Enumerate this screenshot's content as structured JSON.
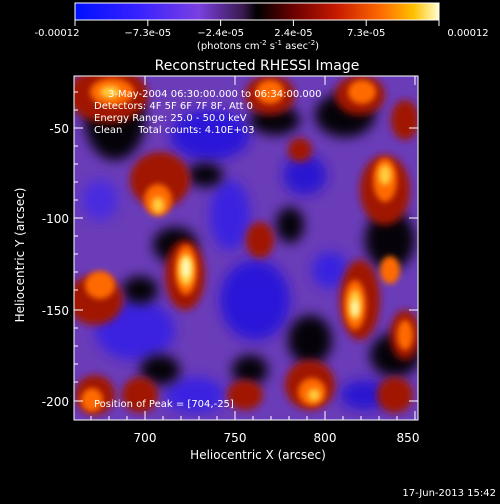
{
  "colorbar": {
    "tick_labels": [
      "-0.00012",
      "−7.3e-05",
      "−2.4e-05",
      "2.4e-05",
      "7.3e-05",
      "0.00012"
    ],
    "units_prefix": "(photons cm",
    "units_exp1": "-2",
    "units_mid": " s",
    "units_exp2": "-1",
    "units_mid2": " asec",
    "units_exp3": "-2",
    "units_suffix": ")"
  },
  "title": "Reconstructed RHESSI Image",
  "info": {
    "time_range": "3-May-2004 06:30:00.000 to 06:34:00.000",
    "detectors": "Detectors: 4F 5F 6F 7F 8F, Att 0",
    "energy_range": "Energy Range: 25.0 - 50.0 keV",
    "clean_counts": "Clean     Total counts: 4.10E+03"
  },
  "peak_label": "Position of Peak = [704,-25]",
  "axes": {
    "xlabel": "Heliocentric X (arcsec)",
    "ylabel": "Heliocentric Y (arcsec)",
    "x_ticks": [
      "700",
      "750",
      "800",
      "850"
    ],
    "y_ticks": [
      "-50",
      "-100",
      "-150",
      "-200"
    ]
  },
  "timestamp": "17-Jun-2013 15:42",
  "colormap": {
    "negative": [
      "#0000ff",
      "#3c1fff",
      "#7a3df2",
      "#8f5ad8"
    ],
    "center": "#6a3cb8",
    "positive": [
      "#000000",
      "#5a0000",
      "#b01000",
      "#ff5a00",
      "#ffb000",
      "#ffffaa"
    ]
  }
}
